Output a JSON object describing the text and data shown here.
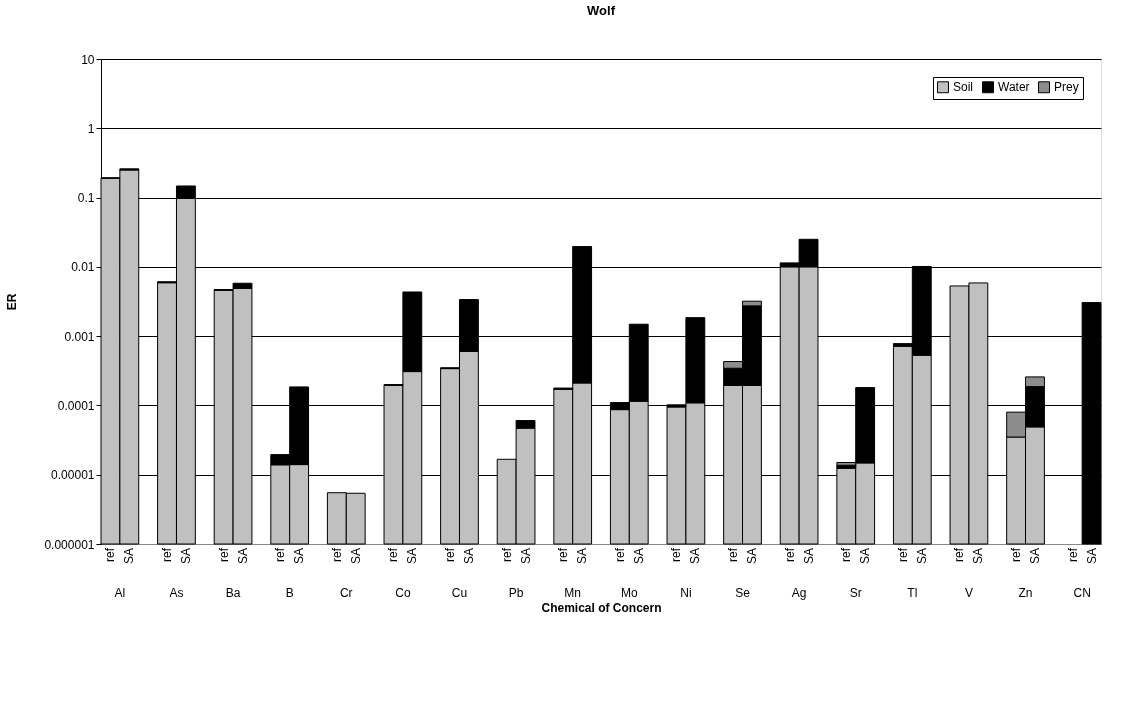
{
  "chart_data": {
    "type": "bar",
    "title": "Wolf",
    "xlabel": "Chemical of Concern",
    "ylabel": "ER",
    "categories": [
      "ref",
      "SA",
      "ref",
      "SA",
      "ref",
      "SA",
      "ref",
      "SA",
      "ref",
      "SA",
      "ref",
      "SA",
      "ref",
      "SA",
      "ref",
      "SA",
      "ref",
      "SA",
      "ref",
      "SA",
      "ref",
      "SA",
      "ref",
      "SA",
      "ref",
      "SA",
      "ref",
      "SA",
      "ref",
      "SA",
      "ref",
      "SA",
      "ref",
      "SA",
      "ref",
      "SA"
    ],
    "annotations": [
      "Al",
      "As",
      "Ba",
      "B",
      "Cr",
      "Co",
      "Cu",
      "Pb",
      "Mn",
      "Mo",
      "Ni",
      "Se",
      "Ag",
      "Sr",
      "Tl",
      "V",
      "Zn",
      "CN"
    ],
    "series": [
      {
        "name": "Soil",
        "color": "#c0c0c0",
        "values": [
          0.19,
          0.25,
          0.0059,
          0.097,
          0.0046,
          0.0049,
          1.39e-05,
          1.4e-05,
          5.5e-06,
          5.4e-06,
          0.000195,
          0.000308,
          0.00034,
          0.0006,
          1.67e-05,
          4.7e-05,
          0.000171,
          0.000211,
          8.7e-05,
          0.000115,
          9.5e-05,
          0.000109,
          0.000195,
          0.000195,
          0.01,
          0.01,
          1.24e-05,
          1.48e-05,
          0.000715,
          0.00053,
          0.0053,
          0.00586,
          3.5e-05,
          4.9e-05,
          null,
          null
        ]
      },
      {
        "name": "Water",
        "color": "#000000",
        "values": [
          0.003,
          0.01,
          0.0002,
          0.05,
          0.0001,
          0.0009,
          5.6e-06,
          0.000171,
          null,
          null,
          5e-06,
          0.00403,
          1e-05,
          0.00277,
          null,
          1.35e-05,
          7e-06,
          0.0194,
          2.3e-05,
          0.00137,
          7e-06,
          0.00174,
          0.000149,
          0.00254,
          0.0014,
          0.015,
          1.3e-06,
          0.000166,
          6.5e-05,
          0.0096,
          null,
          null,
          null,
          0.000138,
          null,
          0.00305
        ]
      },
      {
        "name": "Prey",
        "color": "#8c8c8c",
        "values": [
          null,
          null,
          null,
          null,
          null,
          null,
          null,
          null,
          null,
          null,
          null,
          null,
          null,
          null,
          null,
          null,
          null,
          null,
          null,
          null,
          null,
          null,
          8.6e-05,
          0.00046,
          null,
          null,
          1.3e-06,
          null,
          null,
          null,
          null,
          null,
          4.5e-05,
          7.1e-05,
          null,
          null
        ]
      }
    ],
    "stacked": true,
    "log": true,
    "ylim": [
      1e-06,
      10
    ],
    "yticks": [
      {
        "value": 1e-06,
        "label": "0.000001"
      },
      {
        "value": 1e-05,
        "label": "0.00001"
      },
      0.0001,
      0.001,
      0.01,
      0.1,
      1,
      10
    ],
    "grid": "y",
    "legend": "top right"
  }
}
